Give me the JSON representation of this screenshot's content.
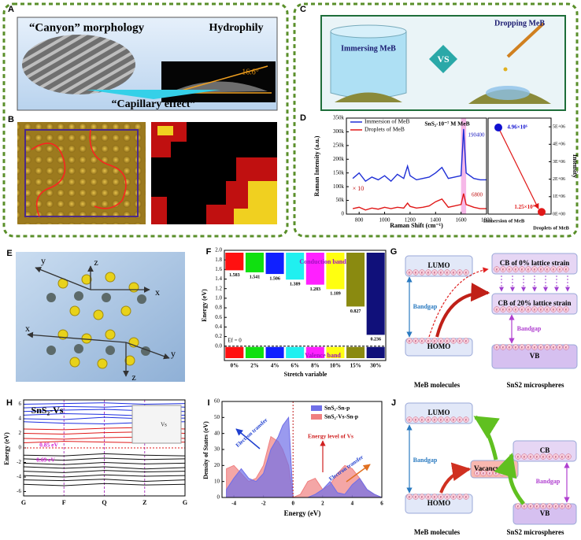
{
  "panels": {
    "A": {
      "letter": "A",
      "morphology": "“Canyon” morphology",
      "hydrophily": "Hydrophily",
      "angle": "16.6°",
      "capillary": "“Capillary effect”"
    },
    "B": {
      "letter": "B"
    },
    "C": {
      "letter": "C",
      "immersing": "Immersing MeB",
      "vs": "VS",
      "dropping": "Dropping MeB"
    },
    "D": {
      "letter": "D",
      "type": "line",
      "title": "SnS₂-10⁻⁷ M MeB",
      "x_label": "Raman Shift (cm⁻¹)",
      "y_label": "Raman Intensity (a.u.)",
      "x": [
        750,
        800,
        850,
        900,
        950,
        1000,
        1050,
        1100,
        1150,
        1180,
        1200,
        1250,
        1300,
        1350,
        1400,
        1450,
        1500,
        1550,
        1600,
        1620,
        1640,
        1700,
        1750,
        1800
      ],
      "series": [
        {
          "name": "Immersion of MeB",
          "color": "#1f2fd6",
          "values": [
            130000,
            150000,
            120000,
            135000,
            125000,
            140000,
            120000,
            145000,
            130000,
            175000,
            140000,
            125000,
            130000,
            135000,
            150000,
            170000,
            130000,
            135000,
            140000,
            310000,
            150000,
            130000,
            125000,
            125000
          ]
        },
        {
          "name": "Droplets of MeB",
          "color": "#e01818",
          "values": [
            20000,
            25000,
            15000,
            22000,
            18000,
            25000,
            20000,
            25000,
            22000,
            40000,
            28000,
            22000,
            25000,
            30000,
            45000,
            55000,
            25000,
            30000,
            35000,
            75000,
            35000,
            25000,
            20000,
            20000
          ]
        }
      ],
      "xlim": [
        700,
        1800
      ],
      "xticks": [
        800,
        1000,
        1200,
        1400,
        1600,
        1800
      ],
      "ylim": [
        0,
        350000
      ],
      "yticks": [
        0,
        {
          "value": 50000,
          "label": "50k"
        },
        {
          "value": 100000,
          "label": "100k"
        },
        {
          "value": 150000,
          "label": "150k"
        },
        {
          "value": 200000,
          "label": "200k"
        },
        {
          "value": 250000,
          "label": "250k"
        },
        {
          "value": 300000,
          "label": "300k"
        },
        {
          "value": 350000,
          "label": "350k"
        }
      ],
      "peak_blue": "190400",
      "peak_red": "6800",
      "scale_note": "× 10",
      "points": {
        "categories": [
          "Immersion of MeB",
          "Droplets of MeB"
        ],
        "values": [
          4960000,
          125000
        ],
        "value_labels": [
          "4.96×10⁶",
          "1.25×10⁵"
        ],
        "colors": [
          "#1010d0",
          "#e01818"
        ],
        "y2_label": "Intensity",
        "y2lim": [
          0,
          5500000
        ],
        "y2ticks": [
          {
            "value": 0,
            "label": "0E+00"
          },
          {
            "value": 1000000,
            "label": "1E+06"
          },
          {
            "value": 2000000,
            "label": "2E+06"
          },
          {
            "value": 3000000,
            "label": "3E+06"
          },
          {
            "value": 4000000,
            "label": "4E+06"
          },
          {
            "value": 5000000,
            "label": "5E+06"
          }
        ]
      }
    },
    "E": {
      "letter": "E",
      "axes": [
        "x",
        "y",
        "z",
        "x",
        "y",
        "z"
      ]
    },
    "F": {
      "letter": "F",
      "type": "bar",
      "x_label": "Stretch variable",
      "y_label": "Energy (eV)",
      "categories": [
        "0%",
        "2%",
        "4%",
        "6%",
        "8%",
        "10%",
        "15%",
        "30%"
      ],
      "values": [
        1.583,
        1.541,
        1.506,
        1.389,
        1.283,
        1.189,
        0.827,
        0.236
      ],
      "colors": [
        "#ff1010",
        "#10e010",
        "#1020ff",
        "#20f0f0",
        "#ff20ff",
        "#ffff10",
        "#8a8a10",
        "#10107a"
      ],
      "ylim": [
        -0.3,
        2.0
      ],
      "yticks": [
        {
          "value": 0,
          "label": "0.0"
        },
        0.2,
        0.4,
        0.6,
        0.8,
        {
          "value": 1,
          "label": "1.0"
        },
        1.2,
        1.4,
        1.6,
        1.8,
        {
          "value": 2,
          "label": "2.0"
        }
      ],
      "conduction": "Conduction band",
      "valence": "Valence band",
      "ef": "Ef = 0"
    },
    "G": {
      "letter": "G",
      "lumo": "LUMO",
      "homo": "HOMO",
      "bandgap_left": "Bandgap",
      "cb0": "CB of 0% lattice strain",
      "cb20": "CB of 20% lattice strain",
      "bandgap_right": "Bandgap",
      "vb": "VB",
      "left_caption": "MeB molecules",
      "right_caption": "SnS2 microspheres",
      "electron": "e"
    },
    "H": {
      "letter": "H",
      "type": "line",
      "title": "SnS₂-Vs",
      "y_label": "Energy (eV)",
      "categories": [
        "G",
        "F",
        "Q",
        "Z",
        "G"
      ],
      "ylim": [
        -6.6,
        6.6
      ],
      "yticks": [
        -6,
        -4,
        -2,
        0,
        2,
        4,
        6
      ],
      "gap1": "0.85 eV",
      "gap2": "0.69 eV",
      "vs": "Vs",
      "series": [
        {
          "color": "#1c2ee0",
          "values": [
            3.6,
            3.4,
            3.3,
            3.5,
            3.6
          ]
        },
        {
          "color": "#1c2ee0",
          "values": [
            4.0,
            3.9,
            4.2,
            4.0,
            4.1
          ]
        },
        {
          "color": "#1c2ee0",
          "values": [
            4.5,
            4.7,
            4.6,
            4.4,
            4.5
          ]
        },
        {
          "color": "#1c2ee0",
          "values": [
            5.0,
            5.2,
            5.3,
            5.1,
            5.0
          ]
        },
        {
          "color": "#1c2ee0",
          "values": [
            5.5,
            5.7,
            5.6,
            5.8,
            5.6
          ]
        },
        {
          "color": "#1c2ee0",
          "values": [
            6.0,
            6.1,
            6.2,
            6.0,
            6.1
          ]
        },
        {
          "color": "#e01818",
          "values": [
            0.7,
            0.9,
            0.8,
            0.7,
            0.8
          ]
        },
        {
          "color": "#e01818",
          "values": [
            1.3,
            1.2,
            1.4,
            1.5,
            1.3
          ]
        },
        {
          "color": "#e01818",
          "values": [
            2.0,
            1.9,
            2.1,
            2.2,
            2.0
          ]
        },
        {
          "color": "#e01818",
          "values": [
            2.6,
            2.5,
            2.7,
            2.8,
            2.6
          ]
        },
        {
          "color": "#111111",
          "values": [
            -1.0,
            -1.1,
            -0.8,
            -1.0,
            -1.1
          ]
        },
        {
          "color": "#111111",
          "values": [
            -1.5,
            -1.7,
            -1.4,
            -1.6,
            -1.5
          ]
        },
        {
          "color": "#111111",
          "values": [
            -2.1,
            -2.3,
            -2.0,
            -2.2,
            -2.1
          ]
        },
        {
          "color": "#111111",
          "values": [
            -2.6,
            -2.8,
            -2.6,
            -2.9,
            -2.7
          ]
        },
        {
          "color": "#111111",
          "values": [
            -3.2,
            -3.4,
            -3.1,
            -3.3,
            -3.2
          ]
        },
        {
          "color": "#111111",
          "values": [
            -3.8,
            -4.0,
            -3.7,
            -3.9,
            -3.8
          ]
        },
        {
          "color": "#111111",
          "values": [
            -4.4,
            -4.5,
            -4.3,
            -4.6,
            -4.4
          ]
        },
        {
          "color": "#111111",
          "values": [
            -5.0,
            -5.2,
            -4.9,
            -5.1,
            -5.0
          ]
        }
      ]
    },
    "I": {
      "letter": "I",
      "type": "area",
      "x_label": "Energy (eV)",
      "y_label": "Density of States (eV)",
      "x": [
        -4.5,
        -4,
        -3.5,
        -3,
        -2.5,
        -2,
        -1.5,
        -1,
        -0.7,
        -0.3,
        0,
        0.5,
        1,
        1.5,
        2,
        2.5,
        3,
        3.5,
        4,
        4.5,
        5,
        5.5,
        6
      ],
      "series": [
        {
          "name": "SnS₂-Sn-p",
          "color": "#6f6fe8",
          "values": [
            5,
            12,
            18,
            12,
            10,
            15,
            30,
            38,
            45,
            50,
            0,
            0,
            0,
            2,
            5,
            10,
            3,
            2,
            8,
            12,
            5,
            2,
            0
          ]
        },
        {
          "name": "SnS₂-Vs-Sn-p",
          "color": "#f08080",
          "values": [
            18,
            20,
            15,
            10,
            12,
            20,
            38,
            35,
            30,
            20,
            0,
            2,
            10,
            12,
            5,
            8,
            15,
            20,
            18,
            12,
            5,
            2,
            0
          ]
        }
      ],
      "xlim": [
        -4.8,
        6
      ],
      "xticks": [
        -4,
        -2,
        0,
        2,
        4,
        6
      ],
      "ylim": [
        0,
        60
      ],
      "yticks": [
        0,
        10,
        20,
        30,
        40,
        50,
        60
      ],
      "transfer_left": "Electron transfer",
      "vs_level": "Energy level of Vs",
      "transfer_right": "Electron transfer"
    },
    "J": {
      "letter": "J",
      "lumo": "LUMO",
      "homo": "HOMO",
      "bandgap_left": "Bandgap",
      "cb": "CB",
      "bandgap_right": "Bandgap",
      "vb": "VB",
      "vacancy": "Vacancy level",
      "left_caption": "MeB molecules",
      "right_caption": "SnS2 microspheres",
      "electron": "e"
    }
  }
}
